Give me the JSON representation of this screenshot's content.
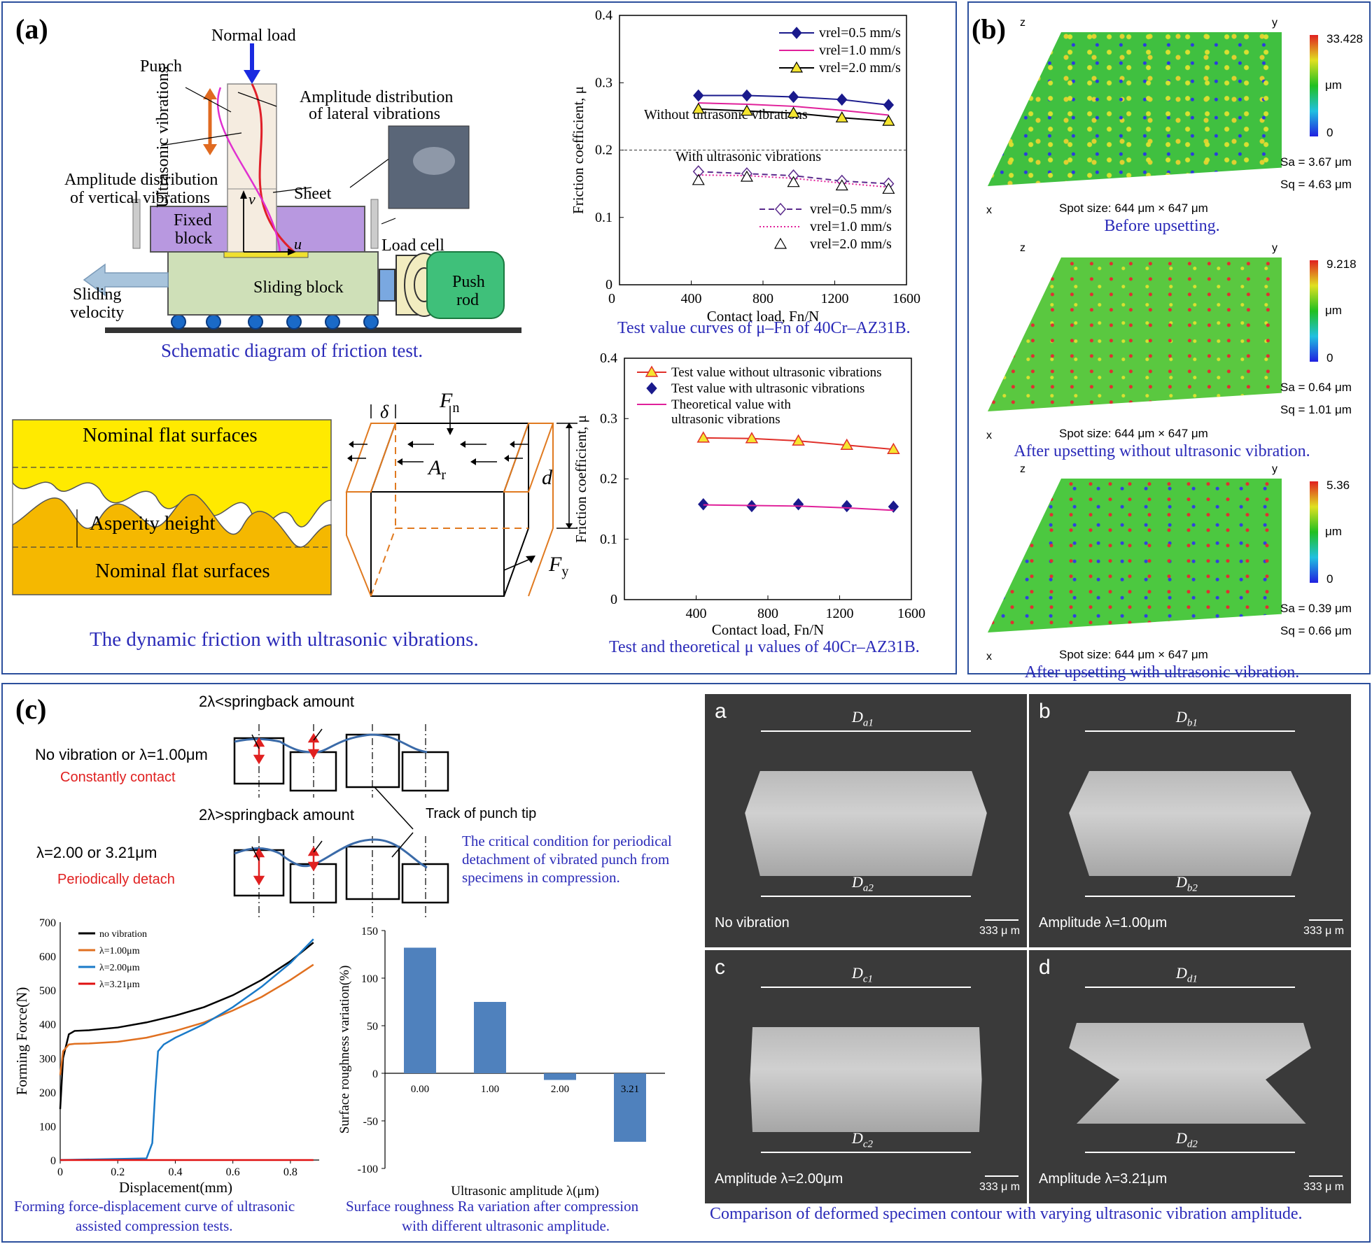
{
  "panel_a": {
    "label": "(a)",
    "schematic": {
      "normal_load": "Normal load",
      "punch": "Punch",
      "ultrasonic_vibrations": "Ultrasonic vibrations",
      "amp_lateral_1": "Amplitude distribution",
      "amp_lateral_2": "of lateral vibrations",
      "amp_vertical_1": "Amplitude distribution",
      "amp_vertical_2": "of vertical vibrations",
      "sheet": "Sheet",
      "fixed_block_1": "Fixed",
      "fixed_block_2": "block",
      "v": "v",
      "u": "u",
      "load_cell": "Load cell",
      "sliding_block": "Sliding block",
      "sliding_velocity_1": "Sliding",
      "sliding_velocity_2": "velocity",
      "push_rod_1": "Push",
      "push_rod_2": "rod",
      "caption": "Schematic diagram of friction test."
    },
    "asperity": {
      "top": "Nominal flat surfaces",
      "bottom": "Nominal flat surfaces",
      "height": "Asperity height"
    },
    "block": {
      "delta": "δ",
      "fn": "F",
      "fn_sub": "n",
      "ar": "A",
      "ar_sub": "r",
      "d": "d",
      "fy": "F",
      "fy_sub": "y"
    },
    "bottom_caption": "The dynamic friction with ultrasonic vibrations.",
    "chart1_caption": "Test value curves of μ–Fn of 40Cr–AZ31B.",
    "chart2_caption": "Test and theoretical μ values of 40Cr–AZ31B."
  },
  "panel_b": {
    "label": "(b)",
    "surfaces": [
      {
        "max": "33.428",
        "unit": "μm",
        "min": "0",
        "sa": "Sa = 3.67 μm",
        "sq": "Sq = 4.63 μm",
        "spot": "Spot size: 644 μm × 647 μm",
        "caption": "Before upsetting."
      },
      {
        "max": "9.218",
        "unit": "μm",
        "min": "0",
        "sa": "Sa = 0.64 μm",
        "sq": "Sq = 1.01 μm",
        "spot": "Spot size: 644 μm × 647 μm",
        "caption": "After upsetting without ultrasonic vibration."
      },
      {
        "max": "5.36",
        "unit": "μm",
        "min": "0",
        "sa": "Sa = 0.39 μm",
        "sq": "Sq = 0.66 μm",
        "spot": "Spot size: 644 μm × 647 μm",
        "caption": "After upsetting with ultrasonic vibration."
      }
    ],
    "axis_z": "z",
    "axis_y": "y",
    "axis_x": "x"
  },
  "panel_c": {
    "label": "(c)",
    "crit": {
      "less": "2λ<springback amount",
      "greater": "2λ>springback amount",
      "cond1": "No vibration or λ=1.00μm",
      "cond1_note": "Constantly contact",
      "cond2": "λ=2.00 or 3.21μm",
      "cond2_note": "Periodically detach",
      "track": "Track of punch tip",
      "caption_1": "The critical condition for periodical",
      "caption_2": "detachment of vibrated punch from",
      "caption_3": "specimens in compression."
    },
    "force_caption_1": "Forming force-displacement curve of ultrasonic",
    "force_caption_2": "assisted compression tests.",
    "rough_caption_1": "Surface roughness Ra variation after compression",
    "rough_caption_2": "with different ultrasonic amplitude.",
    "sem": [
      {
        "letter": "a",
        "top": "D",
        "top_sub": "a1",
        "bottom": "D",
        "bottom_sub": "a2",
        "note": "No vibration",
        "scale": "333 μ m"
      },
      {
        "letter": "b",
        "top": "D",
        "top_sub": "b1",
        "bottom": "D",
        "bottom_sub": "b2",
        "note": "Amplitude λ=1.00μm",
        "scale": "333 μ m"
      },
      {
        "letter": "c",
        "top": "D",
        "top_sub": "c1",
        "bottom": "D",
        "bottom_sub": "c2",
        "note": "Amplitude λ=2.00μm",
        "scale": "333 μ m"
      },
      {
        "letter": "d",
        "top": "D",
        "top_sub": "d1",
        "bottom": "D",
        "bottom_sub": "d2",
        "note": "Amplitude λ=3.21μm",
        "scale": "333 μ m"
      }
    ],
    "sem_caption": "Comparison of deformed specimen contour with varying ultrasonic vibration amplitude."
  },
  "chart_data": [
    {
      "type": "line",
      "xlabel": "Contact load, Fn/N",
      "ylabel": "Friction coefficient, μ",
      "xlim": [
        0,
        1600
      ],
      "ylim": [
        0,
        0.4
      ],
      "xticks": [
        "400",
        "800",
        "1200",
        "1600"
      ],
      "yticks": [
        "0",
        "0.1",
        "0.2",
        "0.3",
        "0.4"
      ],
      "x": [
        440,
        710,
        970,
        1240,
        1500
      ],
      "series": [
        {
          "name": "vrel=0.5 mm/s",
          "values": [
            0.281,
            0.281,
            0.279,
            0.275,
            0.267
          ],
          "color": "#1a1a8c"
        },
        {
          "name": "vrel=1.0 mm/s",
          "values": [
            0.27,
            0.268,
            0.265,
            0.259,
            0.252
          ],
          "color": "#e0209a"
        },
        {
          "name": "vrel=2.0 mm/s",
          "values": [
            0.261,
            0.258,
            0.255,
            0.248,
            0.243
          ],
          "color": "#000000"
        },
        {
          "name": "vrel=0.5 mm/s",
          "values": [
            0.168,
            0.165,
            0.162,
            0.154,
            0.15
          ],
          "color": "#5a2a8c"
        },
        {
          "name": "vrel=1.0 mm/s",
          "values": [
            0.163,
            0.162,
            0.158,
            0.151,
            0.145
          ],
          "color": "#e0209a"
        },
        {
          "name": "vrel=2.0 mm/s",
          "values": [
            0.155,
            0.16,
            0.152,
            0.147,
            0.142
          ],
          "color": "#000000"
        }
      ],
      "annotations": [
        "Without ultrasonic vibrations",
        "With ultrasonic vibrations"
      ],
      "reference_line": 0.2
    },
    {
      "type": "line",
      "xlabel": "Contact load, Fn/N",
      "ylabel": "Friction coefficient, μ",
      "xlim": [
        0,
        1600
      ],
      "ylim": [
        0,
        0.4
      ],
      "xticks": [
        "400",
        "800",
        "1200",
        "1600"
      ],
      "yticks": [
        "0",
        "0.1",
        "0.2",
        "0.3",
        "0.4"
      ],
      "x": [
        440,
        710,
        970,
        1240,
        1500
      ],
      "series": [
        {
          "name": "Test value without ultrasonic vibrations",
          "values": [
            0.268,
            0.267,
            0.263,
            0.256,
            0.249
          ],
          "color": "#e0302a"
        },
        {
          "name": "Test value with ultrasonic vibrations",
          "values": [
            0.158,
            0.155,
            0.158,
            0.155,
            0.154
          ],
          "color": "#1a1a8c"
        },
        {
          "name": "Theoretical value with ultrasonic vibrations",
          "values": [
            0.157,
            0.156,
            0.155,
            0.152,
            0.148
          ],
          "color": "#e0209a"
        }
      ]
    },
    {
      "type": "line",
      "xlabel": "Displacement(mm)",
      "ylabel": "Forming Force(N)",
      "xlim": [
        0,
        0.9
      ],
      "ylim": [
        0,
        700
      ],
      "xticks": [
        "0",
        "0.2",
        "0.4",
        "0.6",
        "0.8"
      ],
      "yticks": [
        "0",
        "100",
        "200",
        "300",
        "400",
        "500",
        "600",
        "700"
      ],
      "series": [
        {
          "name": "no vibration",
          "color": "#000000",
          "x": [
            0,
            0.01,
            0.03,
            0.05,
            0.1,
            0.2,
            0.3,
            0.4,
            0.5,
            0.6,
            0.7,
            0.8,
            0.88
          ],
          "values": [
            150,
            300,
            370,
            380,
            382,
            390,
            405,
            425,
            450,
            485,
            530,
            585,
            640
          ]
        },
        {
          "name": "λ=1.00μm",
          "color": "#e07020",
          "x": [
            0,
            0.01,
            0.03,
            0.05,
            0.1,
            0.2,
            0.3,
            0.4,
            0.5,
            0.6,
            0.7,
            0.8,
            0.88
          ],
          "values": [
            250,
            320,
            340,
            342,
            343,
            348,
            360,
            380,
            405,
            440,
            480,
            530,
            575
          ]
        },
        {
          "name": "λ=2.00μm",
          "color": "#1a7ac8",
          "x": [
            0,
            0.3,
            0.32,
            0.33,
            0.34,
            0.36,
            0.4,
            0.5,
            0.6,
            0.7,
            0.8,
            0.88
          ],
          "values": [
            0,
            5,
            50,
            200,
            320,
            340,
            360,
            400,
            450,
            510,
            580,
            650
          ]
        },
        {
          "name": "λ=3.21μm",
          "color": "#e01010",
          "x": [
            0,
            0.88
          ],
          "values": [
            0,
            0
          ]
        }
      ]
    },
    {
      "type": "bar",
      "xlabel": "Ultrasonic amplitude λ(μm)",
      "ylabel": "Surface roughness variation(%)",
      "ylim": [
        -100,
        150
      ],
      "yticks": [
        "-100",
        "-50",
        "0",
        "50",
        "100",
        "150"
      ],
      "categories": [
        "0.00",
        "1.00",
        "2.00",
        "3.21"
      ],
      "values": [
        132,
        75,
        -7,
        -72
      ],
      "color": "#4f81bd"
    }
  ]
}
